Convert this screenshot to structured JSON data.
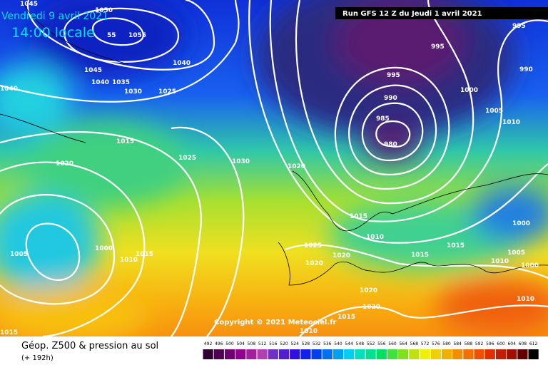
{
  "header": {
    "date": "Vendredi 9 avril 2021",
    "time": "14:00 locale",
    "run": "Run GFS 12 Z du Jeudi 1 avril 2021"
  },
  "footer": {
    "title": "Géop. Z500 & pression au sol",
    "lead": "(+ 192h)",
    "copyright": "Copyright © 2021 Meteociel.fr"
  },
  "isobar_labels": [
    "1045",
    "1050",
    "55",
    "1055",
    "1045",
    "1040",
    "1040",
    "1035",
    "1030",
    "1025",
    "1040",
    "1015",
    "1020",
    "1025",
    "1030",
    "1020",
    "995",
    "995",
    "990",
    "995",
    "1000",
    "990",
    "985",
    "980",
    "1005",
    "1010",
    "1015",
    "1010",
    "1025",
    "1020",
    "1020",
    "1015",
    "1015",
    "1000",
    "1005",
    "1010",
    "1000",
    "1005",
    "1000",
    "1015",
    "1010",
    "1020",
    "1020",
    "1015",
    "1010",
    "1010",
    "1015"
  ],
  "scale": [
    "492",
    "496",
    "500",
    "504",
    "508",
    "512",
    "516",
    "520",
    "524",
    "528",
    "532",
    "536",
    "540",
    "544",
    "548",
    "552",
    "556",
    "560",
    "564",
    "568",
    "572",
    "576",
    "580",
    "584",
    "588",
    "592",
    "596",
    "600",
    "604",
    "608",
    "612"
  ]
}
